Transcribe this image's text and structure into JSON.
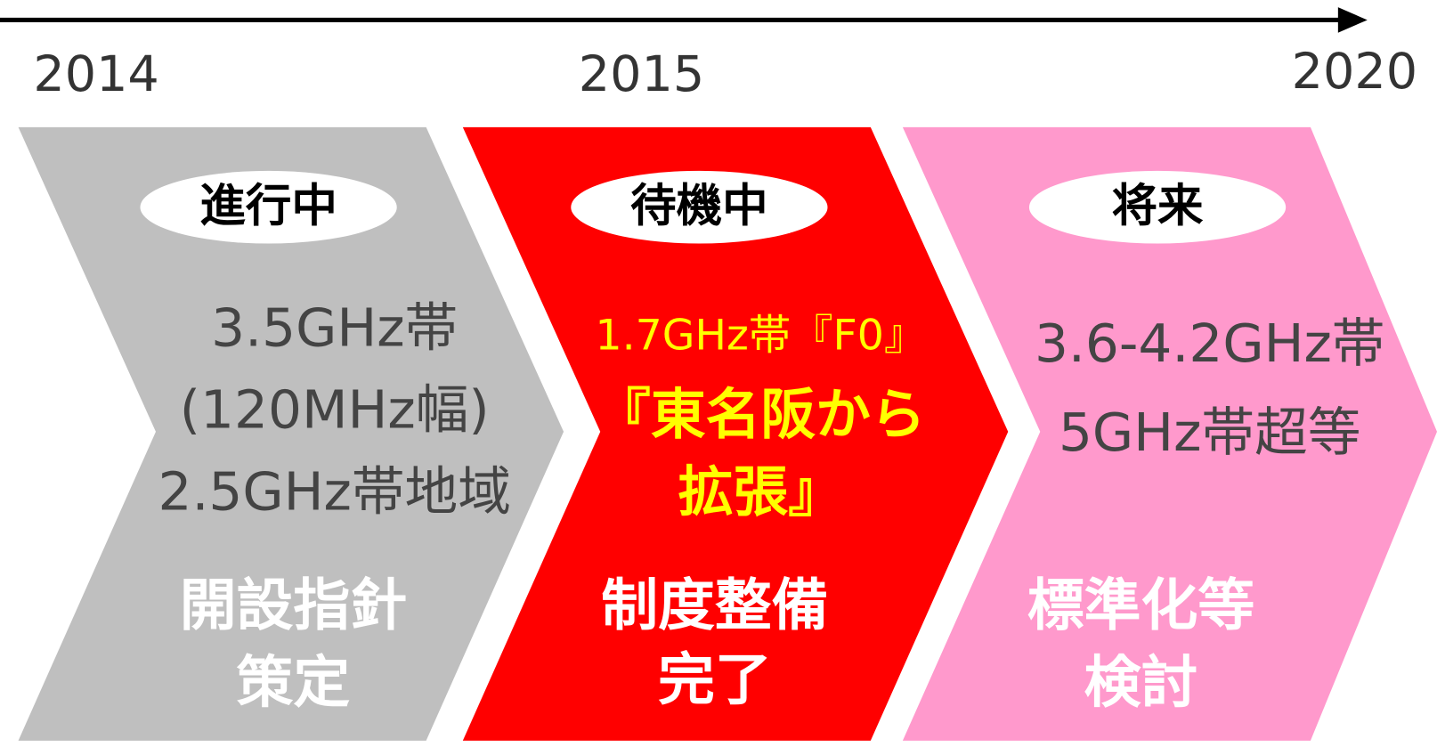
{
  "timeline": {
    "start": "2014",
    "middle": "2015",
    "end": "2020"
  },
  "stages": [
    {
      "status": "進行中",
      "spectrum": [
        "3.5GHz帯",
        "(120MHz幅)",
        "2.5GHz帯地域"
      ],
      "outcome": [
        "開設指針",
        "策定"
      ]
    },
    {
      "status": "待機中",
      "spectrum": [
        "1.7GHz帯『F0』",
        "『東名阪から",
        "拡張』"
      ],
      "outcome": [
        "制度整備",
        "完了"
      ]
    },
    {
      "status": "将来",
      "spectrum": [
        "3.6-4.2GHz帯",
        "5GHz帯超等"
      ],
      "outcome": [
        "標準化等",
        "検討"
      ]
    }
  ]
}
